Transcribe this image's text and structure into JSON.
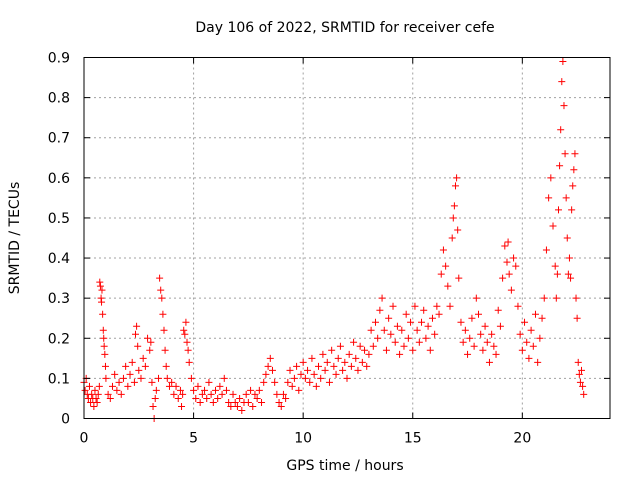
{
  "chart_data": {
    "type": "scatter",
    "title": "Day 106 of 2022, SRMTID for receiver cefe",
    "xlabel": "GPS time / hours",
    "ylabel": "SRMTID / TECUs",
    "xlim": [
      0,
      24
    ],
    "ylim": [
      0,
      0.9
    ],
    "x_ticks": [
      0,
      5,
      10,
      15,
      20
    ],
    "x_tick_labels": [
      "0",
      "5",
      "10",
      "15",
      "20"
    ],
    "y_ticks": [
      0,
      0.1,
      0.2,
      0.3,
      0.4,
      0.5,
      0.6,
      0.7,
      0.8,
      0.9
    ],
    "y_tick_labels": [
      "0",
      "0.1",
      "0.2",
      "0.3",
      "0.4",
      "0.5",
      "0.6",
      "0.7",
      "0.8",
      "0.9"
    ],
    "grid": true,
    "marker": "+",
    "color": "#ff0000",
    "series": [
      {
        "name": "SRMTID",
        "points": [
          [
            0.0,
            0.09
          ],
          [
            0.05,
            0.07
          ],
          [
            0.1,
            0.1
          ],
          [
            0.15,
            0.06
          ],
          [
            0.2,
            0.05
          ],
          [
            0.25,
            0.08
          ],
          [
            0.3,
            0.04
          ],
          [
            0.35,
            0.06
          ],
          [
            0.4,
            0.05
          ],
          [
            0.45,
            0.03
          ],
          [
            0.5,
            0.07
          ],
          [
            0.55,
            0.05
          ],
          [
            0.6,
            0.04
          ],
          [
            0.65,
            0.06
          ],
          [
            0.7,
            0.08
          ],
          [
            0.72,
            0.34
          ],
          [
            0.75,
            0.33
          ],
          [
            0.78,
            0.3
          ],
          [
            0.8,
            0.29
          ],
          [
            0.82,
            0.32
          ],
          [
            0.85,
            0.26
          ],
          [
            0.88,
            0.22
          ],
          [
            0.9,
            0.2
          ],
          [
            0.92,
            0.18
          ],
          [
            0.95,
            0.16
          ],
          [
            0.98,
            0.13
          ],
          [
            1.0,
            0.1
          ],
          [
            1.1,
            0.06
          ],
          [
            1.2,
            0.05
          ],
          [
            1.3,
            0.08
          ],
          [
            1.4,
            0.11
          ],
          [
            1.5,
            0.07
          ],
          [
            1.6,
            0.09
          ],
          [
            1.7,
            0.06
          ],
          [
            1.8,
            0.1
          ],
          [
            1.9,
            0.13
          ],
          [
            2.0,
            0.08
          ],
          [
            2.1,
            0.11
          ],
          [
            2.2,
            0.14
          ],
          [
            2.3,
            0.09
          ],
          [
            2.35,
            0.21
          ],
          [
            2.4,
            0.23
          ],
          [
            2.45,
            0.18
          ],
          [
            2.5,
            0.12
          ],
          [
            2.6,
            0.1
          ],
          [
            2.7,
            0.15
          ],
          [
            2.8,
            0.13
          ],
          [
            2.9,
            0.2
          ],
          [
            3.0,
            0.17
          ],
          [
            3.05,
            0.19
          ],
          [
            3.1,
            0.09
          ],
          [
            3.15,
            0.03
          ],
          [
            3.2,
            0.0
          ],
          [
            3.25,
            0.05
          ],
          [
            3.3,
            0.07
          ],
          [
            3.4,
            0.1
          ],
          [
            3.45,
            0.35
          ],
          [
            3.5,
            0.32
          ],
          [
            3.55,
            0.3
          ],
          [
            3.6,
            0.26
          ],
          [
            3.65,
            0.22
          ],
          [
            3.7,
            0.17
          ],
          [
            3.75,
            0.13
          ],
          [
            3.8,
            0.1
          ],
          [
            3.9,
            0.08
          ],
          [
            4.0,
            0.09
          ],
          [
            4.1,
            0.06
          ],
          [
            4.2,
            0.08
          ],
          [
            4.3,
            0.05
          ],
          [
            4.4,
            0.07
          ],
          [
            4.45,
            0.03
          ],
          [
            4.5,
            0.06
          ],
          [
            4.55,
            0.22
          ],
          [
            4.6,
            0.21
          ],
          [
            4.65,
            0.24
          ],
          [
            4.7,
            0.19
          ],
          [
            4.75,
            0.17
          ],
          [
            4.8,
            0.14
          ],
          [
            4.9,
            0.1
          ],
          [
            5.0,
            0.07
          ],
          [
            5.1,
            0.05
          ],
          [
            5.2,
            0.08
          ],
          [
            5.3,
            0.04
          ],
          [
            5.4,
            0.06
          ],
          [
            5.5,
            0.07
          ],
          [
            5.6,
            0.05
          ],
          [
            5.7,
            0.09
          ],
          [
            5.8,
            0.06
          ],
          [
            5.9,
            0.04
          ],
          [
            6.0,
            0.07
          ],
          [
            6.1,
            0.05
          ],
          [
            6.2,
            0.08
          ],
          [
            6.3,
            0.06
          ],
          [
            6.4,
            0.1
          ],
          [
            6.5,
            0.07
          ],
          [
            6.6,
            0.04
          ],
          [
            6.7,
            0.03
          ],
          [
            6.8,
            0.06
          ],
          [
            6.9,
            0.04
          ],
          [
            7.0,
            0.03
          ],
          [
            7.1,
            0.05
          ],
          [
            7.2,
            0.02
          ],
          [
            7.3,
            0.04
          ],
          [
            7.4,
            0.06
          ],
          [
            7.5,
            0.04
          ],
          [
            7.6,
            0.07
          ],
          [
            7.7,
            0.03
          ],
          [
            7.8,
            0.06
          ],
          [
            7.9,
            0.05
          ],
          [
            8.0,
            0.07
          ],
          [
            8.1,
            0.04
          ],
          [
            8.2,
            0.09
          ],
          [
            8.3,
            0.11
          ],
          [
            8.4,
            0.13
          ],
          [
            8.5,
            0.15
          ],
          [
            8.6,
            0.12
          ],
          [
            8.7,
            0.09
          ],
          [
            8.8,
            0.06
          ],
          [
            8.9,
            0.04
          ],
          [
            9.0,
            0.03
          ],
          [
            9.1,
            0.06
          ],
          [
            9.2,
            0.05
          ],
          [
            9.3,
            0.09
          ],
          [
            9.4,
            0.12
          ],
          [
            9.5,
            0.08
          ],
          [
            9.6,
            0.1
          ],
          [
            9.7,
            0.13
          ],
          [
            9.8,
            0.07
          ],
          [
            9.9,
            0.11
          ],
          [
            10.0,
            0.14
          ],
          [
            10.1,
            0.1
          ],
          [
            10.2,
            0.12
          ],
          [
            10.3,
            0.09
          ],
          [
            10.4,
            0.15
          ],
          [
            10.5,
            0.11
          ],
          [
            10.6,
            0.08
          ],
          [
            10.7,
            0.13
          ],
          [
            10.8,
            0.1
          ],
          [
            10.9,
            0.16
          ],
          [
            11.0,
            0.12
          ],
          [
            11.1,
            0.14
          ],
          [
            11.2,
            0.09
          ],
          [
            11.3,
            0.17
          ],
          [
            11.4,
            0.13
          ],
          [
            11.5,
            0.11
          ],
          [
            11.6,
            0.15
          ],
          [
            11.7,
            0.18
          ],
          [
            11.8,
            0.12
          ],
          [
            11.9,
            0.14
          ],
          [
            12.0,
            0.1
          ],
          [
            12.1,
            0.16
          ],
          [
            12.2,
            0.13
          ],
          [
            12.3,
            0.19
          ],
          [
            12.4,
            0.15
          ],
          [
            12.5,
            0.12
          ],
          [
            12.6,
            0.18
          ],
          [
            12.7,
            0.14
          ],
          [
            12.8,
            0.17
          ],
          [
            12.9,
            0.13
          ],
          [
            13.0,
            0.16
          ],
          [
            13.1,
            0.22
          ],
          [
            13.2,
            0.18
          ],
          [
            13.3,
            0.24
          ],
          [
            13.4,
            0.2
          ],
          [
            13.5,
            0.27
          ],
          [
            13.6,
            0.3
          ],
          [
            13.7,
            0.22
          ],
          [
            13.8,
            0.17
          ],
          [
            13.9,
            0.25
          ],
          [
            14.0,
            0.21
          ],
          [
            14.1,
            0.28
          ],
          [
            14.2,
            0.19
          ],
          [
            14.3,
            0.23
          ],
          [
            14.4,
            0.16
          ],
          [
            14.5,
            0.22
          ],
          [
            14.6,
            0.18
          ],
          [
            14.7,
            0.26
          ],
          [
            14.8,
            0.2
          ],
          [
            14.9,
            0.24
          ],
          [
            15.0,
            0.17
          ],
          [
            15.1,
            0.28
          ],
          [
            15.2,
            0.22
          ],
          [
            15.3,
            0.19
          ],
          [
            15.4,
            0.24
          ],
          [
            15.5,
            0.27
          ],
          [
            15.6,
            0.2
          ],
          [
            15.7,
            0.23
          ],
          [
            15.8,
            0.17
          ],
          [
            15.9,
            0.25
          ],
          [
            16.0,
            0.21
          ],
          [
            16.1,
            0.28
          ],
          [
            16.2,
            0.26
          ],
          [
            16.3,
            0.36
          ],
          [
            16.4,
            0.42
          ],
          [
            16.5,
            0.38
          ],
          [
            16.6,
            0.33
          ],
          [
            16.7,
            0.28
          ],
          [
            16.8,
            0.45
          ],
          [
            16.85,
            0.5
          ],
          [
            16.9,
            0.53
          ],
          [
            16.95,
            0.58
          ],
          [
            17.0,
            0.6
          ],
          [
            17.05,
            0.47
          ],
          [
            17.1,
            0.35
          ],
          [
            17.2,
            0.24
          ],
          [
            17.3,
            0.19
          ],
          [
            17.4,
            0.22
          ],
          [
            17.5,
            0.16
          ],
          [
            17.6,
            0.2
          ],
          [
            17.7,
            0.25
          ],
          [
            17.8,
            0.18
          ],
          [
            17.9,
            0.3
          ],
          [
            18.0,
            0.26
          ],
          [
            18.1,
            0.21
          ],
          [
            18.2,
            0.17
          ],
          [
            18.3,
            0.23
          ],
          [
            18.4,
            0.19
          ],
          [
            18.5,
            0.14
          ],
          [
            18.6,
            0.21
          ],
          [
            18.7,
            0.18
          ],
          [
            18.8,
            0.16
          ],
          [
            18.9,
            0.27
          ],
          [
            19.0,
            0.23
          ],
          [
            19.1,
            0.35
          ],
          [
            19.2,
            0.43
          ],
          [
            19.3,
            0.39
          ],
          [
            19.35,
            0.44
          ],
          [
            19.4,
            0.36
          ],
          [
            19.5,
            0.32
          ],
          [
            19.6,
            0.4
          ],
          [
            19.7,
            0.38
          ],
          [
            19.8,
            0.28
          ],
          [
            19.9,
            0.21
          ],
          [
            20.0,
            0.17
          ],
          [
            20.1,
            0.24
          ],
          [
            20.2,
            0.19
          ],
          [
            20.3,
            0.15
          ],
          [
            20.4,
            0.22
          ],
          [
            20.5,
            0.18
          ],
          [
            20.6,
            0.26
          ],
          [
            20.7,
            0.14
          ],
          [
            20.8,
            0.2
          ],
          [
            20.9,
            0.25
          ],
          [
            21.0,
            0.3
          ],
          [
            21.1,
            0.42
          ],
          [
            21.2,
            0.55
          ],
          [
            21.3,
            0.6
          ],
          [
            21.4,
            0.48
          ],
          [
            21.5,
            0.38
          ],
          [
            21.55,
            0.3
          ],
          [
            21.6,
            0.36
          ],
          [
            21.65,
            0.52
          ],
          [
            21.7,
            0.63
          ],
          [
            21.75,
            0.72
          ],
          [
            21.8,
            0.84
          ],
          [
            21.85,
            0.89
          ],
          [
            21.9,
            0.78
          ],
          [
            21.95,
            0.66
          ],
          [
            22.0,
            0.55
          ],
          [
            22.05,
            0.45
          ],
          [
            22.1,
            0.36
          ],
          [
            22.15,
            0.4
          ],
          [
            22.2,
            0.35
          ],
          [
            22.25,
            0.52
          ],
          [
            22.3,
            0.58
          ],
          [
            22.35,
            0.62
          ],
          [
            22.4,
            0.66
          ],
          [
            22.45,
            0.3
          ],
          [
            22.5,
            0.25
          ],
          [
            22.55,
            0.14
          ],
          [
            22.6,
            0.11
          ],
          [
            22.65,
            0.09
          ],
          [
            22.7,
            0.12
          ],
          [
            22.75,
            0.08
          ],
          [
            22.8,
            0.06
          ]
        ]
      }
    ]
  }
}
